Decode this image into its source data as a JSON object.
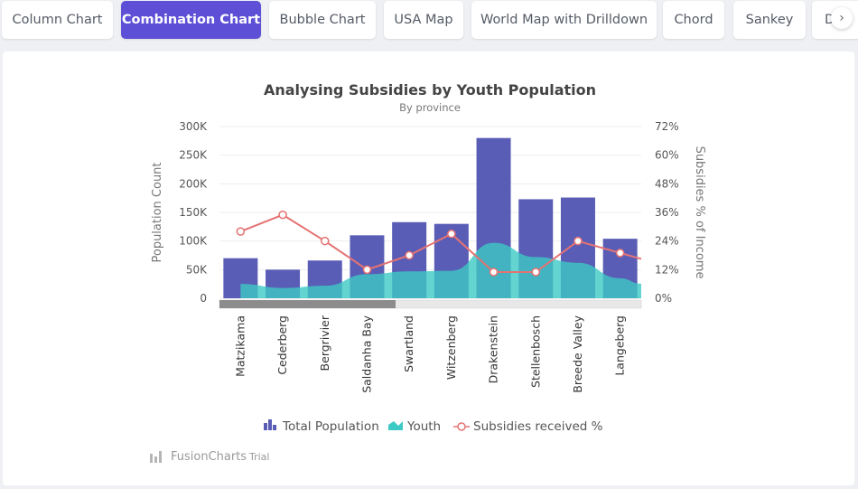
{
  "tabs": [
    {
      "label": "Column Chart",
      "active": false
    },
    {
      "label": "Combination Chart",
      "active": true
    },
    {
      "label": "Bubble Chart",
      "active": false
    },
    {
      "label": "USA Map",
      "active": false
    },
    {
      "label": "World Map with Drilldown",
      "active": false
    },
    {
      "label": "Chord",
      "active": false
    },
    {
      "label": "Sankey",
      "active": false
    },
    {
      "label": "D",
      "active": false
    }
  ],
  "tab_scroll_icon": "chevron-right-icon",
  "watermark": {
    "brand": "FusionCharts",
    "suffix": "Trial",
    "icon": "fusioncharts-logo-icon"
  },
  "colors": {
    "active_tab": "#5d50d6",
    "column": "#5a5db6",
    "area": "#3dc9c4",
    "line": "#e57373",
    "scroll_track": "#e8e8e8",
    "scroll_thumb": "#8c8c8c"
  },
  "chart_data": {
    "type": "combination",
    "title": "Analysing Subsidies by Youth Population",
    "subtitle": "By province",
    "ylabel": "Population Count",
    "y2label": "Subsidies % of Income",
    "ylim": [
      0,
      300000
    ],
    "y2lim": [
      0,
      72
    ],
    "ytick_labels": [
      "0",
      "50K",
      "100K",
      "150K",
      "200K",
      "250K",
      "300K"
    ],
    "y2tick_labels": [
      "0%",
      "12%",
      "24%",
      "36%",
      "48%",
      "60%",
      "72%"
    ],
    "categories": [
      "Matzikama",
      "Cederberg",
      "Bergrivier",
      "Saldanha Bay",
      "Swartland",
      "Witzenberg",
      "Drakenstein",
      "Stellenbosch",
      "Breede Valley",
      "Langeberg"
    ],
    "series": [
      {
        "name": "Total Population",
        "type": "column",
        "values": [
          70000,
          50000,
          66000,
          110000,
          133000,
          130000,
          280000,
          173000,
          176000,
          104000
        ]
      },
      {
        "name": "Youth",
        "type": "area",
        "values": [
          25000,
          18000,
          22000,
          42000,
          47000,
          48000,
          97000,
          72000,
          62000,
          35000
        ]
      },
      {
        "name": "Subsidies received %",
        "type": "line",
        "axis": "secondary",
        "values": [
          28,
          35,
          24,
          12,
          18,
          27,
          11,
          11,
          24,
          19
        ]
      }
    ],
    "legend": "bottom"
  }
}
